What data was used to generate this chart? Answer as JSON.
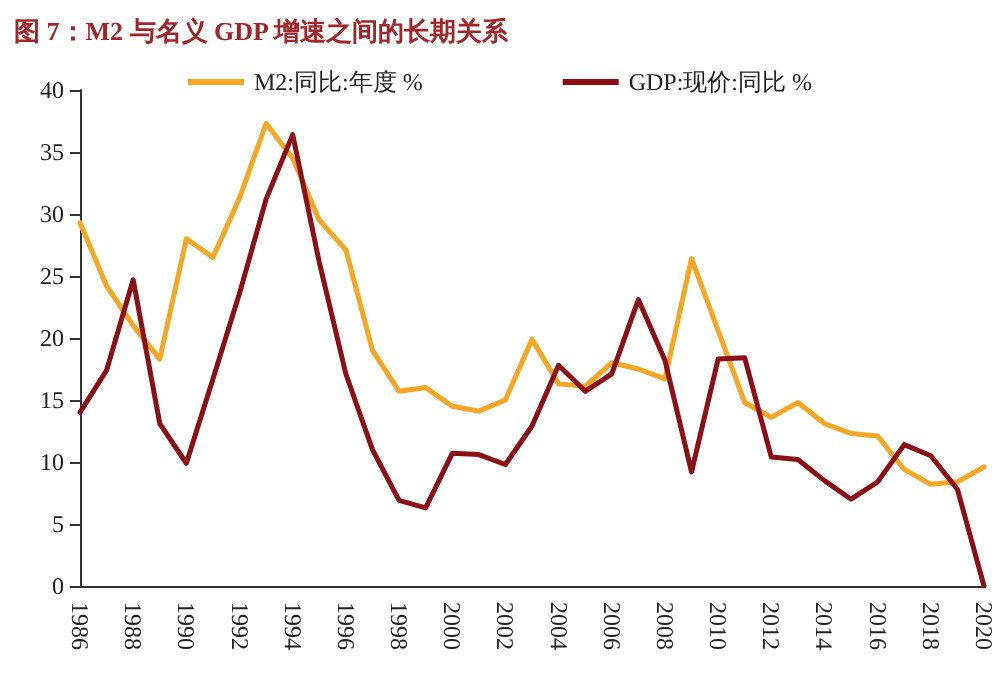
{
  "chart_data": {
    "type": "line",
    "title": "图 7：M2 与名义 GDP 增速之间的长期关系",
    "categories": [
      "1986",
      null,
      "1988",
      null,
      "1990",
      null,
      "1992",
      null,
      "1994",
      null,
      "1996",
      null,
      "1998",
      null,
      "2000",
      null,
      "2002",
      null,
      "2004",
      null,
      "2006",
      null,
      "2008",
      null,
      "2010",
      null,
      "2012",
      null,
      "2014",
      null,
      "2016",
      null,
      "2018",
      null,
      "2020"
    ],
    "series": [
      {
        "name": "M2:同比:年度 %",
        "color": "#f5a623",
        "values": [
          29.3,
          24.2,
          21.0,
          18.3,
          28.0,
          26.5,
          31.3,
          37.3,
          34.5,
          29.5,
          27.1,
          19.0,
          15.7,
          16.0,
          14.5,
          14.1,
          15.0,
          19.9,
          16.3,
          16.1,
          18.0,
          17.5,
          16.7,
          26.4,
          20.6,
          14.8,
          13.6,
          14.8,
          13.1,
          12.3,
          12.1,
          9.4,
          8.2,
          8.4,
          9.6
        ]
      },
      {
        "name": "GDP:现价:同比 %",
        "color": "#8b0f14",
        "values": [
          14.0,
          17.4,
          24.7,
          13.1,
          9.9,
          16.7,
          23.6,
          31.2,
          36.4,
          26.1,
          17.1,
          11.0,
          6.9,
          6.3,
          10.7,
          10.6,
          9.8,
          12.9,
          17.8,
          15.7,
          17.1,
          23.1,
          18.2,
          9.2,
          18.3,
          18.4,
          10.4,
          10.2,
          8.5,
          7.0,
          8.4,
          11.4,
          10.5,
          7.8,
          0
        ]
      }
    ],
    "ylim": [
      0,
      40
    ],
    "yticks": [
      0,
      5,
      10,
      15,
      20,
      25,
      30,
      35,
      40
    ],
    "grid": false,
    "legend": "top",
    "marker": "none",
    "line_style": "solid"
  }
}
